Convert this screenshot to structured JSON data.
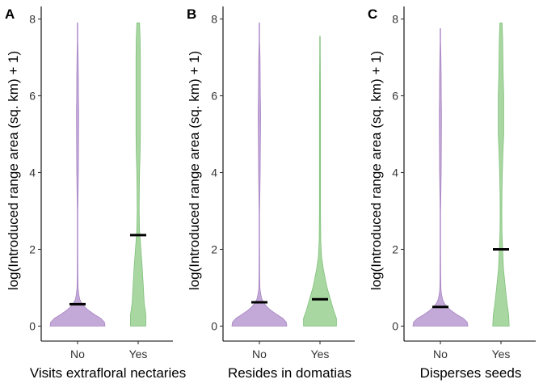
{
  "colors": {
    "No": "#c3a9d8",
    "No_line": "#a884c4",
    "Yes": "#a9d7a1",
    "Yes_line": "#7fc07a"
  },
  "chart_data": [
    {
      "type": "violin",
      "panel": "A",
      "xlabel": "Visits extrafloral nectaries",
      "ylabel": "log(Introduced range area (sq. km) + 1)",
      "ylim": [
        0,
        8
      ],
      "yticks": [
        "0",
        "2",
        "4",
        "6",
        "8"
      ],
      "grid": false,
      "categories": [
        "No",
        "Yes"
      ],
      "series": [
        {
          "category": "No",
          "median": 0.57,
          "min": 0,
          "max": 7.9,
          "density": [
            [
              0,
              1
            ],
            [
              0.1,
              0.98
            ],
            [
              0.2,
              0.85
            ],
            [
              0.3,
              0.62
            ],
            [
              0.4,
              0.42
            ],
            [
              0.5,
              0.26
            ],
            [
              0.6,
              0.15
            ],
            [
              0.7,
              0.08
            ],
            [
              0.8,
              0.05
            ],
            [
              0.9,
              0.035
            ],
            [
              1.0,
              0.02
            ],
            [
              1.3,
              0.012
            ],
            [
              2.0,
              0.008
            ],
            [
              3.0,
              0.008
            ],
            [
              4.0,
              0.03
            ],
            [
              4.6,
              0.035
            ],
            [
              5.4,
              0.04
            ],
            [
              5.6,
              0.04
            ],
            [
              6.0,
              0.032
            ],
            [
              6.5,
              0.03
            ],
            [
              7.0,
              0.02
            ],
            [
              7.4,
              0.008
            ],
            [
              7.9,
              0.004
            ]
          ]
        },
        {
          "category": "Yes",
          "median": 2.37,
          "min": 0,
          "max": 7.9,
          "density": [
            [
              0,
              0.28
            ],
            [
              0.3,
              0.28
            ],
            [
              0.6,
              0.22
            ],
            [
              1.0,
              0.19
            ],
            [
              1.5,
              0.15
            ],
            [
              2.0,
              0.1
            ],
            [
              2.5,
              0.05
            ],
            [
              3.0,
              0.035
            ],
            [
              3.5,
              0.04
            ],
            [
              4.0,
              0.05
            ],
            [
              4.5,
              0.07
            ],
            [
              5.0,
              0.08
            ],
            [
              5.5,
              0.08
            ],
            [
              6.0,
              0.08
            ],
            [
              6.5,
              0.08
            ],
            [
              7.0,
              0.08
            ],
            [
              7.5,
              0.07
            ],
            [
              7.9,
              0.05
            ]
          ]
        }
      ]
    },
    {
      "type": "violin",
      "panel": "B",
      "xlabel": "Resides in domatias",
      "ylabel": "log(Introduced range area (sq. km) + 1)",
      "ylim": [
        0,
        8
      ],
      "yticks": [
        "0",
        "2",
        "4",
        "6",
        "8"
      ],
      "grid": false,
      "categories": [
        "No",
        "Yes"
      ],
      "series": [
        {
          "category": "No",
          "median": 0.62,
          "min": 0,
          "max": 7.9,
          "density": [
            [
              0,
              1
            ],
            [
              0.1,
              0.98
            ],
            [
              0.2,
              0.86
            ],
            [
              0.3,
              0.64
            ],
            [
              0.4,
              0.44
            ],
            [
              0.5,
              0.28
            ],
            [
              0.6,
              0.17
            ],
            [
              0.7,
              0.09
            ],
            [
              0.8,
              0.06
            ],
            [
              0.9,
              0.035
            ],
            [
              1.0,
              0.02
            ],
            [
              1.3,
              0.012
            ],
            [
              2.0,
              0.008
            ],
            [
              3.0,
              0.008
            ],
            [
              4.0,
              0.03
            ],
            [
              4.6,
              0.035
            ],
            [
              5.4,
              0.045
            ],
            [
              5.6,
              0.045
            ],
            [
              6.0,
              0.035
            ],
            [
              6.5,
              0.03
            ],
            [
              7.0,
              0.025
            ],
            [
              7.4,
              0.008
            ],
            [
              7.9,
              0.004
            ]
          ]
        },
        {
          "category": "Yes",
          "median": 0.7,
          "min": 0,
          "max": 7.55,
          "density": [
            [
              0,
              0.6
            ],
            [
              0.2,
              0.6
            ],
            [
              0.4,
              0.5
            ],
            [
              0.6,
              0.42
            ],
            [
              0.8,
              0.34
            ],
            [
              1.0,
              0.26
            ],
            [
              1.2,
              0.2
            ],
            [
              1.5,
              0.12
            ],
            [
              1.8,
              0.06
            ],
            [
              2.2,
              0.03
            ],
            [
              3.0,
              0.02
            ],
            [
              4.0,
              0.02
            ],
            [
              5.0,
              0.02
            ],
            [
              6.0,
              0.02
            ],
            [
              7.0,
              0.01
            ],
            [
              7.55,
              0.005
            ]
          ]
        }
      ]
    },
    {
      "type": "violin",
      "panel": "C",
      "xlabel": "Disperses seeds",
      "ylabel": "log(Introduced range area (sq. km) + 1)",
      "ylim": [
        0,
        8
      ],
      "yticks": [
        "0",
        "2",
        "4",
        "6",
        "8"
      ],
      "grid": false,
      "categories": [
        "No",
        "Yes"
      ],
      "series": [
        {
          "category": "No",
          "median": 0.5,
          "min": 0,
          "max": 7.75,
          "density": [
            [
              0,
              1
            ],
            [
              0.1,
              0.98
            ],
            [
              0.2,
              0.84
            ],
            [
              0.3,
              0.6
            ],
            [
              0.4,
              0.4
            ],
            [
              0.5,
              0.25
            ],
            [
              0.6,
              0.14
            ],
            [
              0.7,
              0.08
            ],
            [
              0.8,
              0.05
            ],
            [
              0.9,
              0.03
            ],
            [
              1.0,
              0.02
            ],
            [
              1.3,
              0.012
            ],
            [
              2.0,
              0.008
            ],
            [
              3.0,
              0.008
            ],
            [
              4.0,
              0.03
            ],
            [
              4.6,
              0.035
            ],
            [
              5.4,
              0.04
            ],
            [
              5.6,
              0.04
            ],
            [
              6.0,
              0.032
            ],
            [
              6.5,
              0.03
            ],
            [
              7.0,
              0.02
            ],
            [
              7.4,
              0.008
            ],
            [
              7.75,
              0.004
            ]
          ]
        },
        {
          "category": "Yes",
          "median": 2.0,
          "min": 0,
          "max": 7.9,
          "density": [
            [
              0,
              0.3
            ],
            [
              0.3,
              0.28
            ],
            [
              0.6,
              0.22
            ],
            [
              1.0,
              0.16
            ],
            [
              1.5,
              0.09
            ],
            [
              2.0,
              0.06
            ],
            [
              2.5,
              0.035
            ],
            [
              3.0,
              0.03
            ],
            [
              3.5,
              0.035
            ],
            [
              4.0,
              0.05
            ],
            [
              4.5,
              0.07
            ],
            [
              5.0,
              0.1
            ],
            [
              5.5,
              0.1
            ],
            [
              6.0,
              0.1
            ],
            [
              6.5,
              0.08
            ],
            [
              7.0,
              0.07
            ],
            [
              7.5,
              0.06
            ],
            [
              7.9,
              0.04
            ]
          ]
        }
      ]
    }
  ]
}
